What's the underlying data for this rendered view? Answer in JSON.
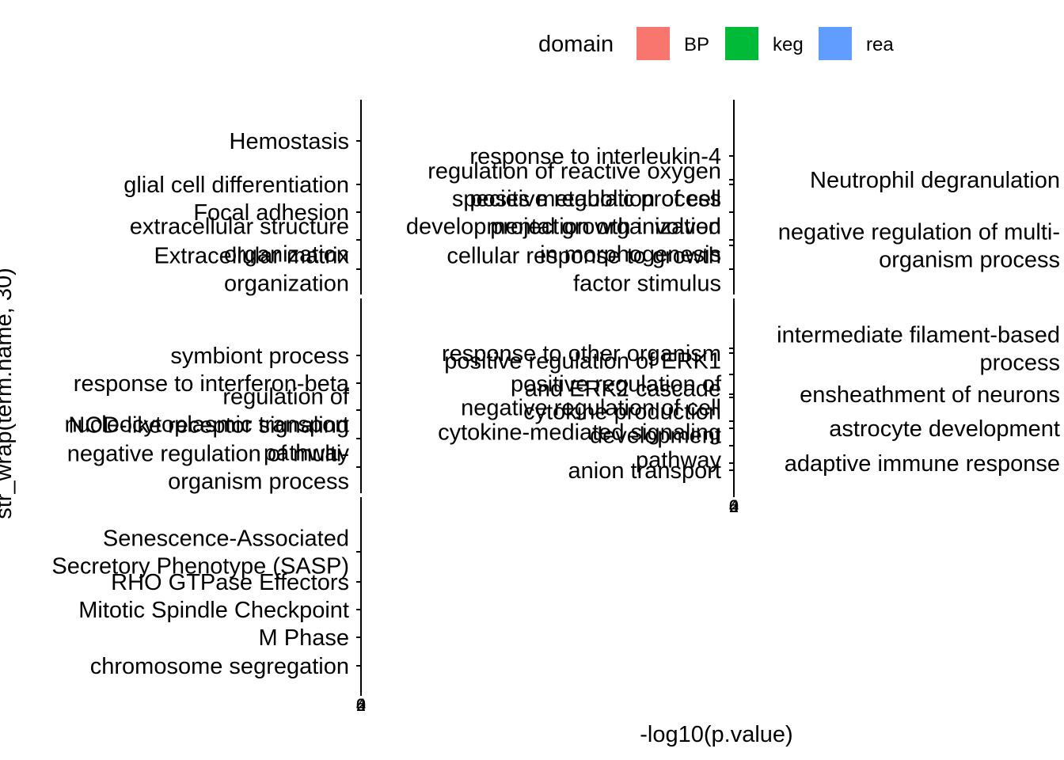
{
  "chart_data": {
    "type": "bar",
    "xlabel": "-log10(p.value)",
    "ylabel": "str_wrap(term.name, 30)",
    "legend": {
      "title": "domain",
      "position": "top",
      "entries": [
        {
          "name": "BP",
          "color": "#F8766D"
        },
        {
          "name": "keg",
          "color": "#00BA38"
        },
        {
          "name": "rea",
          "color": "#619CFF"
        }
      ]
    },
    "xlim": [
      0,
      6
    ],
    "x_tick_labels": [
      "0",
      "2",
      "4",
      "6"
    ],
    "grid": false,
    "panels": [
      {
        "id": "r1c1",
        "categories": [
          {
            "lines": [
              "Hemostasis"
            ]
          },
          {
            "lines": [
              "glial cell differentiation"
            ]
          },
          {
            "lines": [
              "Focal adhesion"
            ]
          },
          {
            "lines": [
              "extracellular structure",
              "organization"
            ]
          },
          {
            "lines": [
              "Extracellular matrix",
              "organization"
            ]
          }
        ]
      },
      {
        "id": "r1c2",
        "categories": [
          {
            "lines": [
              "response to interleukin-4"
            ]
          },
          {
            "lines": [
              "regulation of reactive oxygen",
              "species metabolic process"
            ]
          },
          {
            "lines": [
              "positive regulation of cell",
              "projection organization"
            ]
          },
          {
            "lines": [
              "developmental growth involved",
              "in morphogenesis"
            ]
          },
          {
            "lines": [
              "cellular response to growth",
              "factor stimulus"
            ]
          }
        ]
      },
      {
        "id": "r1c3",
        "categories": [
          {
            "lines": [
              "Neutrophil degranulation"
            ]
          },
          {
            "lines": [
              "negative regulation of multi-",
              "organism process"
            ]
          }
        ]
      },
      {
        "id": "r2c1",
        "categories": [
          {
            "lines": [
              "symbiont process"
            ]
          },
          {
            "lines": [
              "response to interferon-beta"
            ]
          },
          {
            "lines": [
              "regulation of",
              "nucleocytoplasmic transport"
            ]
          },
          {
            "lines": [
              "NOD-like receptor signaling",
              "pathway"
            ]
          },
          {
            "lines": [
              "negative regulation of multi-",
              "organism process"
            ]
          }
        ]
      },
      {
        "id": "r2c2",
        "categories": [
          {
            "lines": [
              "response to other organism"
            ]
          },
          {
            "lines": [
              "positive regulation of ERK1",
              "and ERK2 cascade"
            ]
          },
          {
            "lines": [
              "positive regulation of",
              "cytokine production"
            ]
          },
          {
            "lines": [
              "negative regulation of cell",
              "development"
            ]
          },
          {
            "lines": [
              "cytokine-mediated signaling",
              "pathway"
            ]
          },
          {
            "lines": [
              "anion transport"
            ]
          }
        ]
      },
      {
        "id": "r2c3",
        "categories": [
          {
            "lines": [
              "intermediate filament-based",
              "process"
            ]
          },
          {
            "lines": [
              "ensheathment of neurons"
            ]
          },
          {
            "lines": [
              "astrocyte development"
            ]
          },
          {
            "lines": [
              "adaptive immune response"
            ]
          }
        ]
      },
      {
        "id": "r3c1",
        "categories": [
          {
            "lines": [
              "Senescence-Associated",
              "Secretory Phenotype (SASP)"
            ]
          },
          {
            "lines": [
              "RHO GTPase Effectors"
            ]
          },
          {
            "lines": [
              "Mitotic Spindle Checkpoint"
            ]
          },
          {
            "lines": [
              "M Phase"
            ]
          },
          {
            "lines": [
              "chromosome segregation"
            ]
          }
        ]
      }
    ]
  }
}
